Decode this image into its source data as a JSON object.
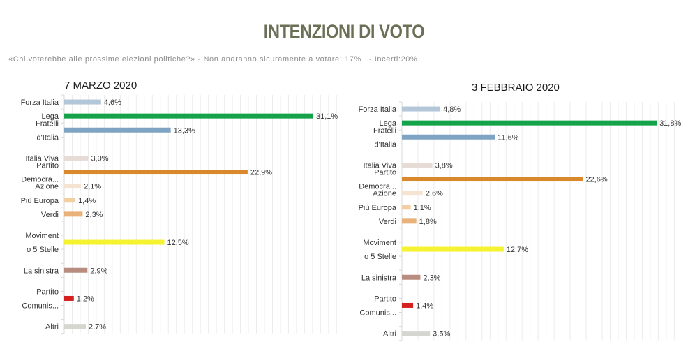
{
  "header": {
    "title": "INTENZIONI DI VOTO",
    "subtitle": "«Chi voterebbe alle prossime elezioni politiche?» - Non andranno sicuramente a votare: 17%   - Incerti:20%"
  },
  "chart_data": [
    {
      "type": "bar",
      "orientation": "horizontal",
      "title": "7 MARZO 2020",
      "xlim": [
        0,
        34
      ],
      "grid": true,
      "categories": [
        {
          "label": [
            "Forza Italia"
          ],
          "value": 4.6,
          "value_label": "4,6%",
          "color": "#b4c7d8"
        },
        {
          "label": [
            "Lega"
          ],
          "value": 31.1,
          "value_label": "31,1%",
          "color": "#15a34a"
        },
        {
          "label": [
            "Fratelli",
            "d'Italia"
          ],
          "value": 13.3,
          "value_label": "13,3%",
          "color": "#7fa3c2"
        },
        {
          "label": [
            ""
          ],
          "value": null,
          "value_label": "",
          "color": ""
        },
        {
          "label": [
            "Italia Viva"
          ],
          "value": 3.0,
          "value_label": "3,0%",
          "color": "#e6dbd5"
        },
        {
          "label": [
            "Partito",
            "Democra..."
          ],
          "value": 22.9,
          "value_label": "22,9%",
          "color": "#d9882c"
        },
        {
          "label": [
            "Azione"
          ],
          "value": 2.1,
          "value_label": "2,1%",
          "color": "#f6e4d2"
        },
        {
          "label": [
            "Più Europa"
          ],
          "value": 1.4,
          "value_label": "1,4%",
          "color": "#f1cfa2"
        },
        {
          "label": [
            "Verdi"
          ],
          "value": 2.3,
          "value_label": "2,3%",
          "color": "#e8b27a"
        },
        {
          "label": [
            ""
          ],
          "value": null,
          "value_label": "",
          "color": ""
        },
        {
          "label": [
            "Moviment",
            "o 5 Stelle"
          ],
          "value": 12.5,
          "value_label": "12,5%",
          "color": "#f5f232"
        },
        {
          "label": [
            ""
          ],
          "value": null,
          "value_label": "",
          "color": ""
        },
        {
          "label": [
            "La sinistra"
          ],
          "value": 2.9,
          "value_label": "2,9%",
          "color": "#b88d80"
        },
        {
          "label": [
            ""
          ],
          "value": null,
          "value_label": "",
          "color": ""
        },
        {
          "label": [
            "Partito",
            "Comunis..."
          ],
          "value": 1.2,
          "value_label": "1,2%",
          "color": "#d42020"
        },
        {
          "label": [
            ""
          ],
          "value": null,
          "value_label": "",
          "color": ""
        },
        {
          "label": [
            "Altri"
          ],
          "value": 2.7,
          "value_label": "2,7%",
          "color": "#d6d6d0"
        }
      ]
    },
    {
      "type": "bar",
      "orientation": "horizontal",
      "title": "3 FEBBRAIO 2020",
      "xlim": [
        0,
        34
      ],
      "grid": true,
      "categories": [
        {
          "label": [
            "Forza Italia"
          ],
          "value": 4.8,
          "value_label": "4,8%",
          "color": "#b4c7d8"
        },
        {
          "label": [
            "Lega"
          ],
          "value": 31.8,
          "value_label": "31,8%",
          "color": "#15a34a"
        },
        {
          "label": [
            "Fratelli",
            "d'Italia"
          ],
          "value": 11.6,
          "value_label": "11,6%",
          "color": "#7fa3c2"
        },
        {
          "label": [
            ""
          ],
          "value": null,
          "value_label": "",
          "color": ""
        },
        {
          "label": [
            "Italia Viva"
          ],
          "value": 3.8,
          "value_label": "3,8%",
          "color": "#e6dbd5"
        },
        {
          "label": [
            "Partito",
            "Democra..."
          ],
          "value": 22.6,
          "value_label": "22,6%",
          "color": "#d9882c"
        },
        {
          "label": [
            "Azione"
          ],
          "value": 2.6,
          "value_label": "2,6%",
          "color": "#f6e4d2"
        },
        {
          "label": [
            "Più Europa"
          ],
          "value": 1.1,
          "value_label": "1,1%",
          "color": "#f1cfa2"
        },
        {
          "label": [
            "Verdi"
          ],
          "value": 1.8,
          "value_label": "1,8%",
          "color": "#e8b27a"
        },
        {
          "label": [
            ""
          ],
          "value": null,
          "value_label": "",
          "color": ""
        },
        {
          "label": [
            "Moviment",
            "o 5 Stelle"
          ],
          "value": 12.7,
          "value_label": "12,7%",
          "color": "#f5f232"
        },
        {
          "label": [
            ""
          ],
          "value": null,
          "value_label": "",
          "color": ""
        },
        {
          "label": [
            "La sinistra"
          ],
          "value": 2.3,
          "value_label": "2,3%",
          "color": "#b88d80"
        },
        {
          "label": [
            ""
          ],
          "value": null,
          "value_label": "",
          "color": ""
        },
        {
          "label": [
            "Partito",
            "Comunis..."
          ],
          "value": 1.4,
          "value_label": "1,4%",
          "color": "#d42020"
        },
        {
          "label": [
            ""
          ],
          "value": null,
          "value_label": "",
          "color": ""
        },
        {
          "label": [
            "Altri"
          ],
          "value": 3.5,
          "value_label": "3,5%",
          "color": "#d6d6d0"
        }
      ]
    }
  ]
}
